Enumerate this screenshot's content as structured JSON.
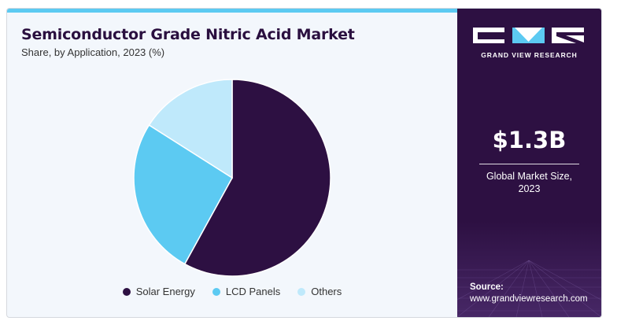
{
  "chart_data": {
    "type": "pie",
    "title": "Semiconductor Grade Nitric Acid Market",
    "subtitle": "Share, by Application, 2023 (%)",
    "categories": [
      "Solar Energy",
      "LCD Panels",
      "Others"
    ],
    "values": [
      58,
      26,
      16
    ],
    "colors": [
      "#2d1042",
      "#5ccaf2",
      "#bfe9fb"
    ],
    "legend_position": "bottom-center"
  },
  "brand": {
    "name": "GRAND VIEW RESEARCH"
  },
  "stat": {
    "value": "$1.3B",
    "label_line1": "Global Market Size,",
    "label_line2": "2023"
  },
  "source": {
    "label": "Source:",
    "url": "www.grandviewresearch.com"
  },
  "colors": {
    "panel": "#2d1042",
    "accent": "#5ccaf2",
    "background": "#f3f7fc"
  }
}
